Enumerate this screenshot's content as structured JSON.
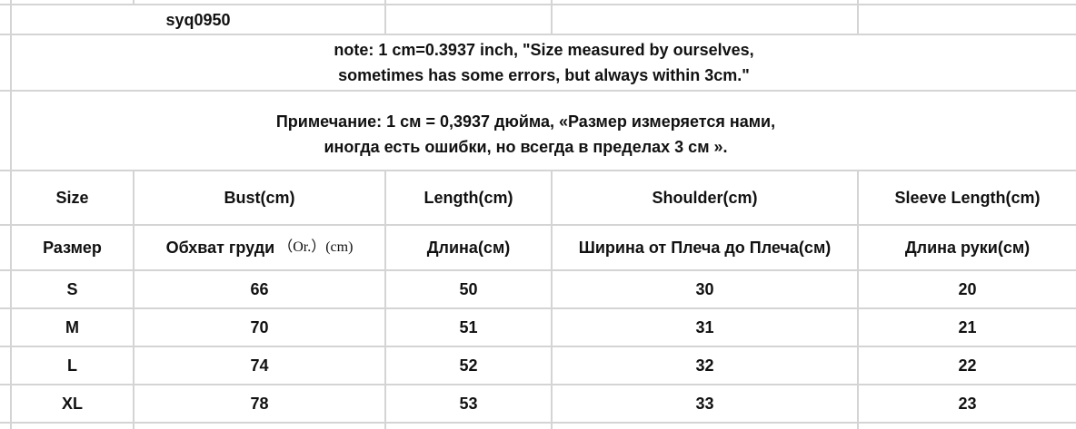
{
  "sku": "syq0950",
  "note_en": [
    "note: 1 cm=0.3937 inch, \"Size measured by ourselves,",
    "sometimes has some errors, but always within 3cm.\""
  ],
  "note_ru": [
    "Примечание: 1 см = 0,3937 дюйма, «Размер измеряется нами,",
    "иногда есть ошибки, но всегда в пределах 3 см »."
  ],
  "headers_en": [
    "Size",
    "Bust(cm)",
    "Length(cm)",
    "Shoulder(cm)",
    "Sleeve Length(cm)"
  ],
  "headers_ru": [
    "Размер",
    "Обхват груди",
    "Длина(см)",
    "Ширина от Плеча до Плеча(см)",
    "Длина руки(см)"
  ],
  "bust_ru_suffix": "（Or.）(cm)",
  "rows": [
    [
      "S",
      "66",
      "50",
      "30",
      "20"
    ],
    [
      "M",
      "70",
      "51",
      "31",
      "21"
    ],
    [
      "L",
      "74",
      "52",
      "32",
      "22"
    ],
    [
      "XL",
      "78",
      "53",
      "33",
      "23"
    ]
  ]
}
